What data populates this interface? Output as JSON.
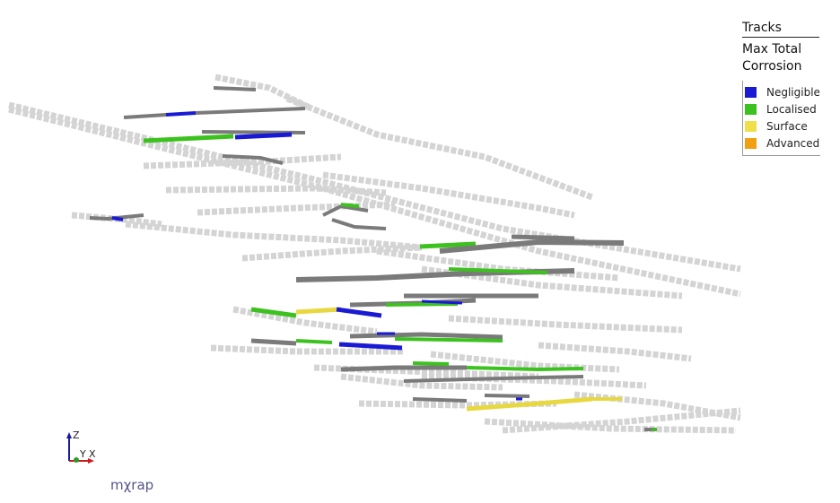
{
  "legend": {
    "title": "Tracks",
    "subtitle_line1": "Max Total",
    "subtitle_line2": "Corrosion",
    "items": [
      {
        "label": "Negligible",
        "color": "#1a1ad4"
      },
      {
        "label": "Localised",
        "color": "#3cc21e"
      },
      {
        "label": "Surface",
        "color": "#efe04a"
      },
      {
        "label": "Advanced",
        "color": "#f0a010"
      }
    ]
  },
  "axes": {
    "z": "Z",
    "y": "Y",
    "x": "X"
  },
  "logo": "mχrap",
  "colors": {
    "ghost": "#d4d4d4",
    "surveyed": "#7a7a7a",
    "negligible": "#1a1ad4",
    "localised": "#3cc21e",
    "surface": "#e8d840",
    "surface_dark": "#c8b820",
    "advanced": "#f0a010"
  }
}
